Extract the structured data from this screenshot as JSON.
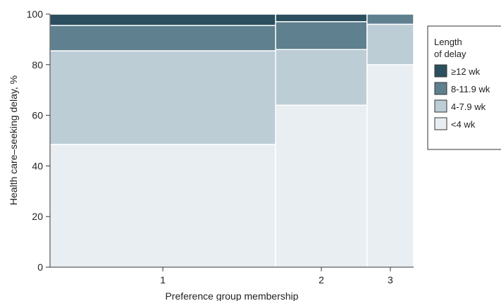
{
  "chart_data": {
    "type": "bar",
    "variant": "mosaic",
    "categories": [
      "1",
      "2",
      "3"
    ],
    "category_shares": [
      0.6205,
      0.2514,
      0.1281
    ],
    "xlabel": "Preference group membership",
    "ylabel": "Health care–seeking delay, %",
    "ylim": [
      0,
      100
    ],
    "yticks": [
      "0",
      "20",
      "40",
      "60",
      "80",
      "100"
    ],
    "legend_title": [
      "Length",
      "of delay"
    ],
    "legend_placement": "right",
    "series": [
      {
        "name": "<4 wk",
        "color": "#e8eef2",
        "values": [
          48.5,
          64.0,
          80.0
        ]
      },
      {
        "name": "4-7.9 wk",
        "color": "#bccdd6",
        "values": [
          37.0,
          22.0,
          16.0
        ]
      },
      {
        "name": "8-11.9 wk",
        "color": "#5e808f",
        "values": [
          10.0,
          11.0,
          4.0
        ]
      },
      {
        "name": "≥12 wk",
        "color": "#2b4f5e",
        "values": [
          4.5,
          3.0,
          0.0
        ]
      }
    ],
    "legend_order": [
      "≥12 wk",
      "8-11.9 wk",
      "4-7.9 wk",
      "<4 wk"
    ]
  }
}
